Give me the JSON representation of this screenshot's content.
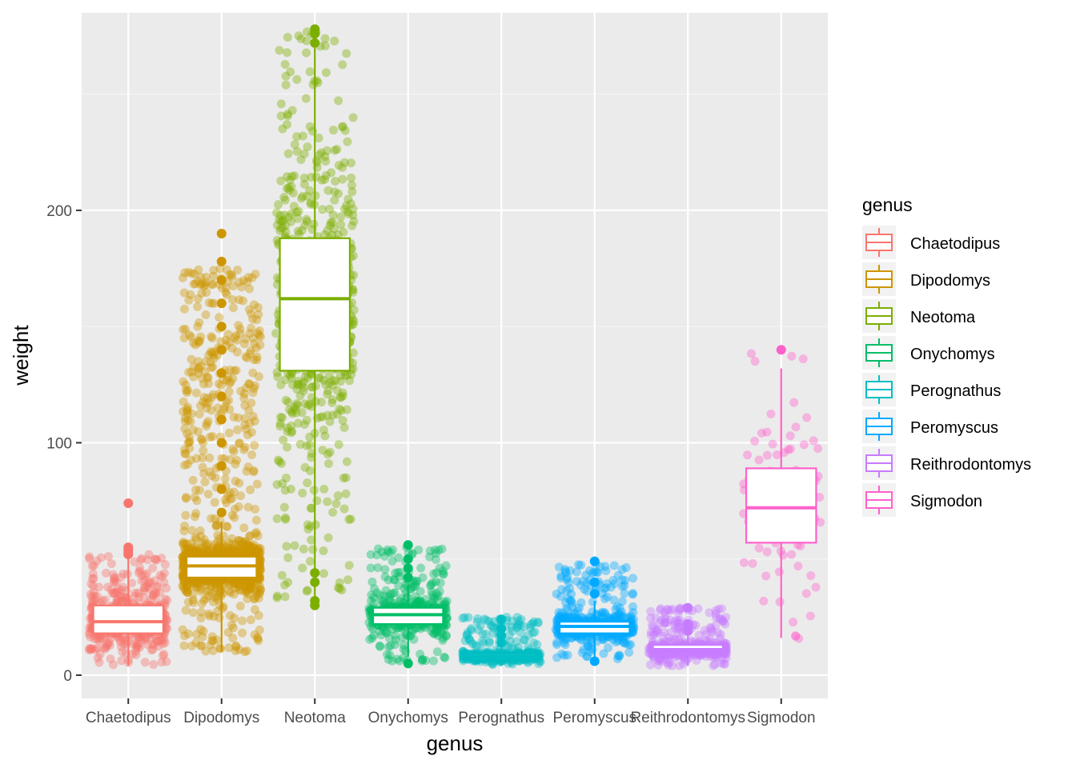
{
  "chart_data": {
    "type": "box",
    "title": "",
    "xlabel": "genus",
    "ylabel": "weight",
    "ylim": [
      -10,
      285
    ],
    "y_ticks": [
      0,
      100,
      200
    ],
    "grid": true,
    "legend": {
      "title": "genus",
      "position": "right"
    },
    "categories": [
      "Chaetodipus",
      "Dipodomys",
      "Neotoma",
      "Onychomys",
      "Perognathus",
      "Peromyscus",
      "Reithrodontomys",
      "Sigmodon"
    ],
    "colors": [
      "#F8766D",
      "#CD9600",
      "#7CAE00",
      "#00BE67",
      "#00BFC4",
      "#00A9FF",
      "#C77CFF",
      "#FF61CC"
    ],
    "boxes": [
      {
        "q1": 18,
        "median": 23,
        "q3": 30,
        "low": 4,
        "high": 50,
        "jitter": [
          4,
          52
        ],
        "n": 500,
        "outliers": [
          52,
          53,
          54,
          55,
          74
        ]
      },
      {
        "q1": 42,
        "median": 47,
        "q3": 51,
        "low": 10,
        "high": 66,
        "jitter": [
          10,
          175
        ],
        "n": 1500,
        "outliers": [
          70,
          80,
          90,
          100,
          110,
          120,
          130,
          140,
          150,
          160,
          170,
          178,
          190
        ]
      },
      {
        "q1": 131,
        "median": 162,
        "q3": 188,
        "low": 32,
        "high": 270,
        "jitter": [
          30,
          278
        ],
        "n": 700,
        "outliers": [
          30,
          32,
          40,
          44,
          272,
          276,
          278
        ]
      },
      {
        "q1": 22,
        "median": 26,
        "q3": 29,
        "low": 8,
        "high": 39,
        "jitter": [
          6,
          55
        ],
        "n": 500,
        "outliers": [
          5,
          42,
          46,
          50,
          56
        ]
      },
      {
        "q1": 7,
        "median": 8,
        "q3": 9,
        "low": 4,
        "high": 12,
        "jitter": [
          4,
          25
        ],
        "n": 400,
        "outliers": [
          14,
          17,
          20,
          24
        ]
      },
      {
        "q1": 18,
        "median": 21,
        "q3": 23,
        "low": 8,
        "high": 32,
        "jitter": [
          7,
          48
        ],
        "n": 500,
        "outliers": [
          6,
          35,
          40,
          49
        ]
      },
      {
        "q1": 10,
        "median": 11,
        "q3": 13,
        "low": 4,
        "high": 18,
        "jitter": [
          4,
          29
        ],
        "n": 500,
        "outliers": [
          19,
          20,
          22,
          29
        ]
      },
      {
        "q1": 57,
        "median": 72,
        "q3": 89,
        "low": 16,
        "high": 132,
        "jitter": [
          15,
          140
        ],
        "n": 90,
        "outliers": [
          140
        ]
      }
    ]
  }
}
